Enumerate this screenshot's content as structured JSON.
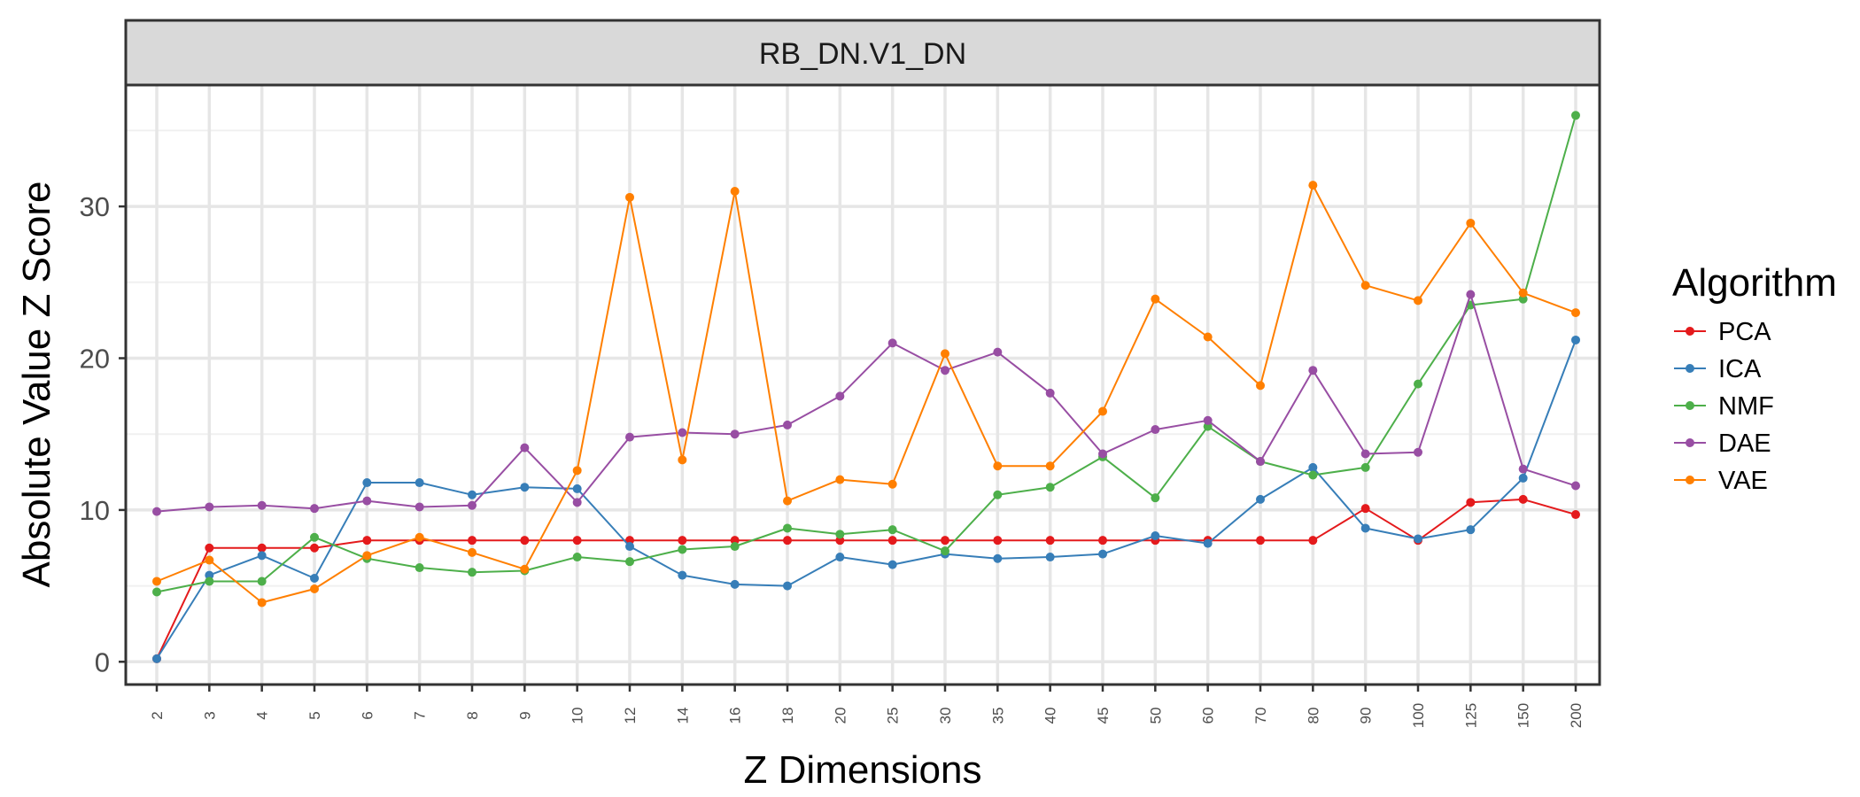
{
  "chart_data": {
    "type": "line",
    "panel_title": "RB_DN.V1_DN",
    "xlabel": "Z Dimensions",
    "ylabel": "Absolute Value Z Score",
    "categories": [
      "2",
      "3",
      "4",
      "5",
      "6",
      "7",
      "8",
      "9",
      "10",
      "12",
      "14",
      "16",
      "18",
      "20",
      "25",
      "30",
      "35",
      "40",
      "45",
      "50",
      "60",
      "70",
      "80",
      "90",
      "100",
      "125",
      "150",
      "200"
    ],
    "ylim": [
      -1.5,
      38
    ],
    "yticks": [
      0,
      10,
      20,
      30
    ],
    "grid": true,
    "legend_title": "Algorithm",
    "legend_position": "right",
    "series": [
      {
        "name": "PCA",
        "color": "#e41a1c",
        "values": [
          0.2,
          7.5,
          7.5,
          7.5,
          8.0,
          8.0,
          8.0,
          8.0,
          8.0,
          8.0,
          8.0,
          8.0,
          8.0,
          8.0,
          8.0,
          8.0,
          8.0,
          8.0,
          8.0,
          8.0,
          8.0,
          8.0,
          8.0,
          10.1,
          8.0,
          10.5,
          10.7,
          9.7
        ]
      },
      {
        "name": "ICA",
        "color": "#377eb8",
        "values": [
          0.2,
          5.7,
          7.0,
          5.5,
          11.8,
          11.8,
          11.0,
          11.5,
          11.4,
          7.6,
          5.7,
          5.1,
          5.0,
          6.9,
          6.4,
          7.1,
          6.8,
          6.9,
          7.1,
          8.3,
          7.8,
          10.7,
          12.8,
          8.8,
          8.1,
          8.7,
          12.1,
          21.2
        ]
      },
      {
        "name": "NMF",
        "color": "#4daf4a",
        "values": [
          4.6,
          5.3,
          5.3,
          8.2,
          6.8,
          6.2,
          5.9,
          6.0,
          6.9,
          6.6,
          7.4,
          7.6,
          8.8,
          8.4,
          8.7,
          7.3,
          11.0,
          11.5,
          13.5,
          10.8,
          15.5,
          13.2,
          12.3,
          12.8,
          18.3,
          23.5,
          23.9,
          36.0
        ]
      },
      {
        "name": "DAE",
        "color": "#984ea3",
        "values": [
          9.9,
          10.2,
          10.3,
          10.1,
          10.6,
          10.2,
          10.3,
          14.1,
          10.5,
          14.8,
          15.1,
          15.0,
          15.6,
          17.5,
          21.0,
          19.2,
          20.4,
          17.7,
          13.7,
          15.3,
          15.9,
          13.2,
          19.2,
          13.7,
          13.8,
          24.2,
          12.7,
          11.6
        ]
      },
      {
        "name": "VAE",
        "color": "#ff7f00",
        "values": [
          5.3,
          6.7,
          3.9,
          4.8,
          7.0,
          8.2,
          7.2,
          6.1,
          12.6,
          30.6,
          13.3,
          31.0,
          10.6,
          12.0,
          11.7,
          20.3,
          12.9,
          12.9,
          16.5,
          23.9,
          21.4,
          18.2,
          31.4,
          24.8,
          23.8,
          28.9,
          24.3,
          23.0
        ]
      }
    ]
  }
}
